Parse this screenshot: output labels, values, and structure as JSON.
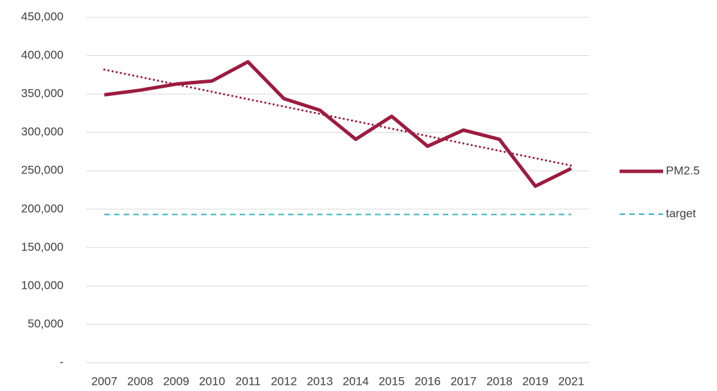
{
  "chart_data": {
    "type": "line",
    "categories": [
      "2007",
      "2008",
      "2009",
      "2010",
      "2011",
      "2012",
      "2013",
      "2014",
      "2015",
      "2016",
      "2017",
      "2018",
      "2019",
      "2021"
    ],
    "series": [
      {
        "name": "PM2.5",
        "color": "#9b1c3f",
        "style": "solid",
        "trendline": "linear",
        "values": [
          349000,
          355000,
          363000,
          367000,
          392000,
          344000,
          329000,
          291000,
          321000,
          282000,
          303000,
          291000,
          230000,
          253000
        ]
      },
      {
        "name": "target",
        "color": "#3bb3bf",
        "style": "dashed",
        "values": [
          193000,
          193000,
          193000,
          193000,
          193000,
          193000,
          193000,
          193000,
          193000,
          193000,
          193000,
          193000,
          193000,
          193000
        ]
      }
    ],
    "ylim": [
      0,
      450000
    ],
    "yticks": [
      {
        "value": 0,
        "label": "-"
      },
      {
        "value": 50000,
        "label": "50,000"
      },
      {
        "value": 100000,
        "label": "100,000"
      },
      {
        "value": 150000,
        "label": "150,000"
      },
      {
        "value": 200000,
        "label": "200,000"
      },
      {
        "value": 250000,
        "label": "250,000"
      },
      {
        "value": 300000,
        "label": "300,000"
      },
      {
        "value": 350000,
        "label": "350,000"
      },
      {
        "value": 400000,
        "label": "400,000"
      },
      {
        "value": 450000,
        "label": "450,000"
      }
    ],
    "grid": true,
    "legend": "right"
  }
}
